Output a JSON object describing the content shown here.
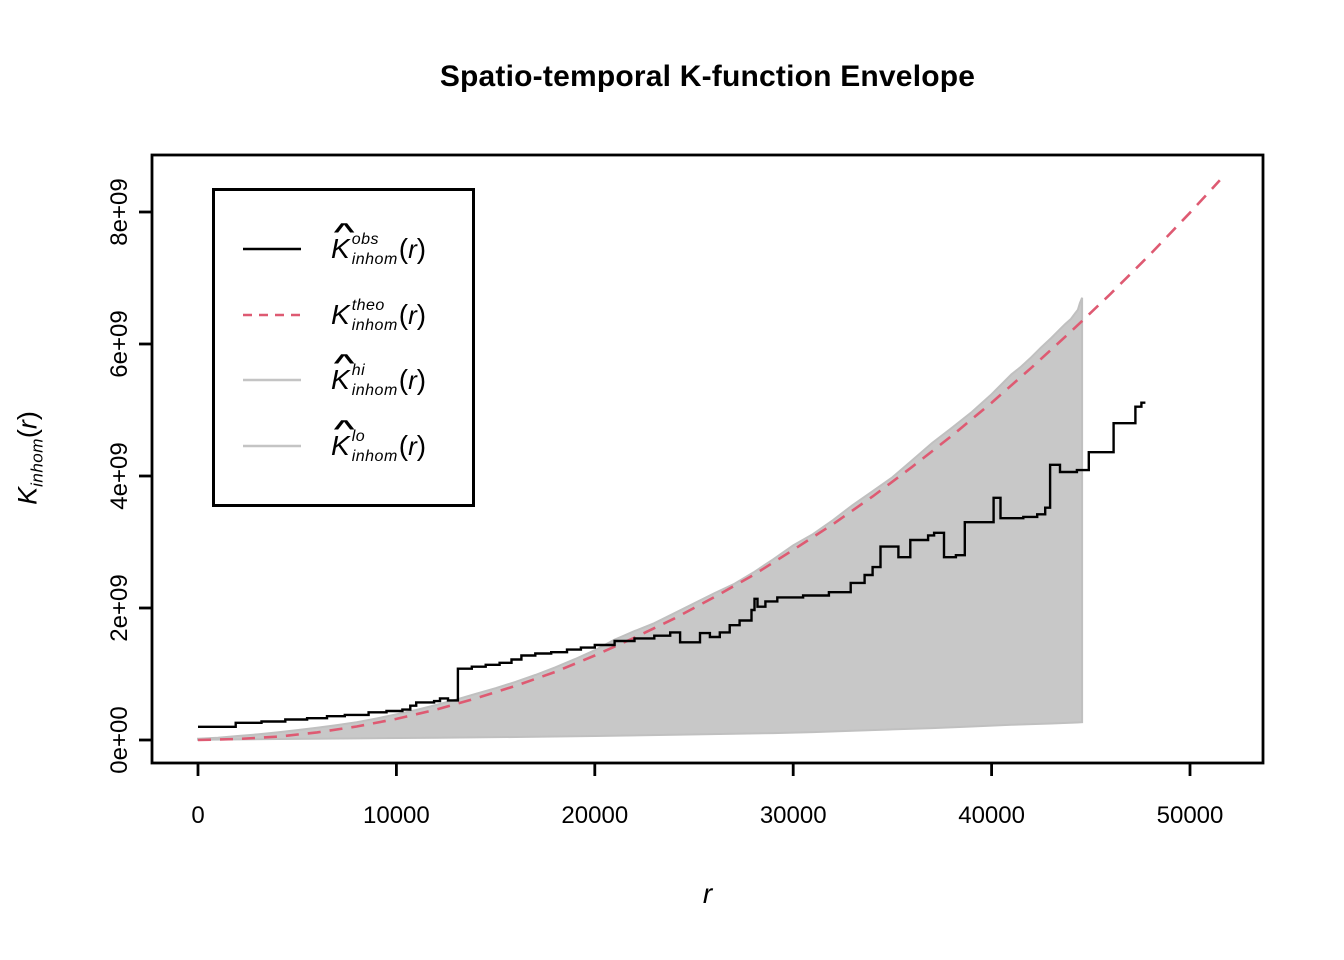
{
  "title": "Spatio-temporal K-function Envelope",
  "axes": {
    "x": {
      "label": "r",
      "ticks": [
        {
          "value": 0,
          "label": "0"
        },
        {
          "value": 10000,
          "label": "10000"
        },
        {
          "value": 20000,
          "label": "20000"
        },
        {
          "value": 30000,
          "label": "30000"
        },
        {
          "value": 40000,
          "label": "40000"
        },
        {
          "value": 50000,
          "label": "50000"
        }
      ]
    },
    "y": {
      "label_base": "K",
      "label_sub": "inhom",
      "label_open": "(",
      "label_var": "r",
      "label_close": ")",
      "ticks": [
        {
          "value_e9": 0,
          "label": "0e+00"
        },
        {
          "value_e9": 2,
          "label": "2e+09"
        },
        {
          "value_e9": 4,
          "label": "4e+09"
        },
        {
          "value_e9": 6,
          "label": "6e+09"
        },
        {
          "value_e9": 8,
          "label": "8e+09"
        }
      ]
    }
  },
  "legend": {
    "items": [
      {
        "key": "obs",
        "hat": "^",
        "base": "K",
        "sup": "obs",
        "sub": "inhom",
        "open": "(",
        "var": "r",
        "close": ")",
        "color": "#000000",
        "dash": "solid"
      },
      {
        "key": "theo",
        "hat": "",
        "base": "K",
        "sup": "theo",
        "sub": "inhom",
        "open": "(",
        "var": "r",
        "close": ")",
        "color": "#de5a72",
        "dash": "dashed"
      },
      {
        "key": "hi",
        "hat": "^",
        "base": "K",
        "sup": "hi",
        "sub": "inhom",
        "open": "(",
        "var": "r",
        "close": ")",
        "color": "#c4c4c4",
        "dash": "solid"
      },
      {
        "key": "lo",
        "hat": "^",
        "base": "K",
        "sup": "lo",
        "sub": "inhom",
        "open": "(",
        "var": "r",
        "close": ")",
        "color": "#c4c4c4",
        "dash": "solid"
      }
    ]
  },
  "chart_data": {
    "type": "line",
    "title": "Spatio-temporal K-function Envelope",
    "xlabel": "r",
    "ylabel": "K_inhom(r)",
    "K_unit": "1e9",
    "xlim": [
      -2320,
      53680
    ],
    "ylim_e9": [
      -0.35,
      8.86
    ],
    "grid": false,
    "legend_position": "top-left",
    "envelope_fill": "#c8c8c8",
    "envelope_edge": "#c0c0c0",
    "series": [
      {
        "name": "K^obs_inhom(r)",
        "role": "observed",
        "style": "step",
        "color": "#000000",
        "end_r": 47750,
        "points_r_Ke9": [
          [
            0,
            0.2
          ],
          [
            1900,
            0.26
          ],
          [
            3200,
            0.28
          ],
          [
            4400,
            0.31
          ],
          [
            5500,
            0.33
          ],
          [
            6500,
            0.36
          ],
          [
            7400,
            0.38
          ],
          [
            8600,
            0.42
          ],
          [
            9500,
            0.44
          ],
          [
            10300,
            0.46
          ],
          [
            10700,
            0.52
          ],
          [
            11000,
            0.57
          ],
          [
            11900,
            0.59
          ],
          [
            12200,
            0.63
          ],
          [
            12600,
            0.6
          ],
          [
            13100,
            1.08
          ],
          [
            13800,
            1.11
          ],
          [
            14500,
            1.14
          ],
          [
            15200,
            1.17
          ],
          [
            15800,
            1.22
          ],
          [
            16300,
            1.28
          ],
          [
            17000,
            1.31
          ],
          [
            17800,
            1.33
          ],
          [
            18600,
            1.37
          ],
          [
            19300,
            1.4
          ],
          [
            20000,
            1.44
          ],
          [
            21000,
            1.5
          ],
          [
            22000,
            1.54
          ],
          [
            23000,
            1.58
          ],
          [
            23800,
            1.63
          ],
          [
            24300,
            1.48
          ],
          [
            25300,
            1.62
          ],
          [
            25800,
            1.56
          ],
          [
            26300,
            1.63
          ],
          [
            26800,
            1.74
          ],
          [
            27300,
            1.81
          ],
          [
            27900,
            1.97
          ],
          [
            28050,
            2.14
          ],
          [
            28200,
            2.02
          ],
          [
            28600,
            2.1
          ],
          [
            29200,
            2.16
          ],
          [
            30500,
            2.19
          ],
          [
            31800,
            2.24
          ],
          [
            32900,
            2.38
          ],
          [
            33600,
            2.5
          ],
          [
            34000,
            2.62
          ],
          [
            34400,
            2.93
          ],
          [
            35300,
            2.77
          ],
          [
            35900,
            3.03
          ],
          [
            36800,
            3.1
          ],
          [
            37100,
            3.14
          ],
          [
            37600,
            2.77
          ],
          [
            38200,
            2.8
          ],
          [
            38650,
            3.3
          ],
          [
            40100,
            3.67
          ],
          [
            40450,
            3.36
          ],
          [
            41600,
            3.38
          ],
          [
            42300,
            3.42
          ],
          [
            42700,
            3.52
          ],
          [
            42950,
            4.17
          ],
          [
            43450,
            4.06
          ],
          [
            44300,
            4.09
          ],
          [
            44900,
            4.36
          ],
          [
            46150,
            4.8
          ],
          [
            47250,
            5.05
          ],
          [
            47550,
            5.11
          ]
        ]
      },
      {
        "name": "K^theo_inhom(r)",
        "role": "theoretical",
        "style": "dashed",
        "color": "#de5a72",
        "points_r_Ke9": [
          [
            0,
            0
          ],
          [
            2000,
            0.015
          ],
          [
            4000,
            0.05
          ],
          [
            6000,
            0.115
          ],
          [
            8000,
            0.205
          ],
          [
            10000,
            0.32
          ],
          [
            12000,
            0.46
          ],
          [
            14000,
            0.63
          ],
          [
            16000,
            0.82
          ],
          [
            18000,
            1.03
          ],
          [
            20000,
            1.28
          ],
          [
            22000,
            1.55
          ],
          [
            24000,
            1.84
          ],
          [
            26000,
            2.16
          ],
          [
            28000,
            2.5
          ],
          [
            30000,
            2.88
          ],
          [
            32000,
            3.27
          ],
          [
            34000,
            3.69
          ],
          [
            36000,
            4.14
          ],
          [
            38000,
            4.61
          ],
          [
            40000,
            5.11
          ],
          [
            42000,
            5.64
          ],
          [
            44000,
            6.19
          ],
          [
            46000,
            6.76
          ],
          [
            48000,
            7.36
          ],
          [
            50000,
            7.99
          ],
          [
            51500,
            8.48
          ]
        ]
      },
      {
        "name": "K^hi_inhom(r)",
        "role": "envelope-upper",
        "style": "solid",
        "color": "#c0c0c0",
        "points_r_Ke9": [
          [
            0,
            0.02
          ],
          [
            1000,
            0.035
          ],
          [
            2000,
            0.06
          ],
          [
            3000,
            0.085
          ],
          [
            4000,
            0.115
          ],
          [
            5000,
            0.15
          ],
          [
            6000,
            0.185
          ],
          [
            7000,
            0.225
          ],
          [
            8000,
            0.27
          ],
          [
            9000,
            0.325
          ],
          [
            10000,
            0.39
          ],
          [
            11000,
            0.455
          ],
          [
            12000,
            0.53
          ],
          [
            13000,
            0.61
          ],
          [
            14000,
            0.7
          ],
          [
            15000,
            0.785
          ],
          [
            16000,
            0.88
          ],
          [
            17000,
            0.985
          ],
          [
            18000,
            1.1
          ],
          [
            19000,
            1.225
          ],
          [
            20000,
            1.36
          ],
          [
            21000,
            1.52
          ],
          [
            22000,
            1.65
          ],
          [
            23000,
            1.77
          ],
          [
            24000,
            1.92
          ],
          [
            25000,
            2.07
          ],
          [
            26000,
            2.22
          ],
          [
            27000,
            2.36
          ],
          [
            28000,
            2.54
          ],
          [
            29000,
            2.74
          ],
          [
            30000,
            2.95
          ],
          [
            31000,
            3.12
          ],
          [
            32000,
            3.33
          ],
          [
            33000,
            3.56
          ],
          [
            34000,
            3.77
          ],
          [
            35000,
            3.98
          ],
          [
            36000,
            4.24
          ],
          [
            37000,
            4.5
          ],
          [
            38000,
            4.73
          ],
          [
            39000,
            4.97
          ],
          [
            40000,
            5.24
          ],
          [
            41000,
            5.54
          ],
          [
            41500,
            5.66
          ],
          [
            42000,
            5.8
          ],
          [
            42500,
            5.95
          ],
          [
            43000,
            6.09
          ],
          [
            43400,
            6.21
          ],
          [
            43700,
            6.3
          ],
          [
            44000,
            6.38
          ],
          [
            44200,
            6.46
          ],
          [
            44350,
            6.52
          ],
          [
            44450,
            6.62
          ],
          [
            44560,
            6.7
          ]
        ]
      },
      {
        "name": "K^lo_inhom(r)",
        "role": "envelope-lower",
        "style": "solid",
        "color": "#c0c0c0",
        "points_r_Ke9": [
          [
            0,
            0.005
          ],
          [
            4000,
            0.015
          ],
          [
            8000,
            0.025
          ],
          [
            12000,
            0.035
          ],
          [
            16000,
            0.045
          ],
          [
            20000,
            0.06
          ],
          [
            24000,
            0.08
          ],
          [
            27000,
            0.095
          ],
          [
            29000,
            0.105
          ],
          [
            31000,
            0.12
          ],
          [
            33000,
            0.14
          ],
          [
            35000,
            0.16
          ],
          [
            37000,
            0.18
          ],
          [
            39000,
            0.205
          ],
          [
            41000,
            0.23
          ],
          [
            43000,
            0.25
          ],
          [
            44300,
            0.265
          ],
          [
            44560,
            0.27
          ]
        ]
      }
    ]
  }
}
